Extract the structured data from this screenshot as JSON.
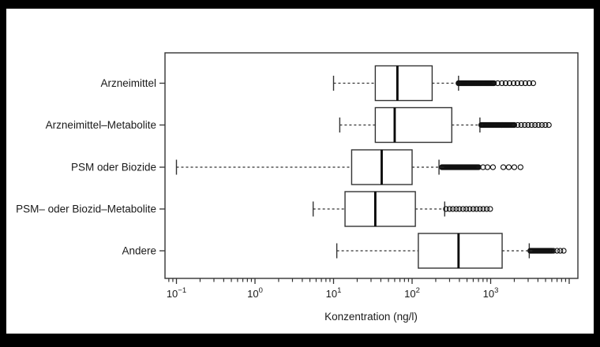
{
  "figure": {
    "background_color": "#000000",
    "panel_color": "#ffffff",
    "line_color": "#333333",
    "text_color": "#1a1a1a"
  },
  "chart_data": {
    "type": "boxplot",
    "orientation": "horizontal",
    "title": "",
    "xlabel": "Konzentration (ng/l)",
    "ylabel": "",
    "x_scale": "log10",
    "xlim": [
      0.0715,
      12900
    ],
    "grid": false,
    "legend": false,
    "x_major_ticks": [
      {
        "value": 0.1,
        "label_base": "10",
        "label_exp": "−1"
      },
      {
        "value": 1,
        "label_base": "10",
        "label_exp": "0"
      },
      {
        "value": 10,
        "label_base": "10",
        "label_exp": "1"
      },
      {
        "value": 100,
        "label_base": "10",
        "label_exp": "2"
      },
      {
        "value": 1000,
        "label_base": "10",
        "label_exp": "3"
      },
      {
        "value": 10000,
        "label_base": null,
        "label_exp": null
      }
    ],
    "x_minor_ticks": [
      0.08,
      0.09,
      0.2,
      0.3,
      0.4,
      0.5,
      0.6,
      0.7,
      0.8,
      0.9,
      2,
      3,
      4,
      5,
      6,
      7,
      8,
      9,
      20,
      30,
      40,
      50,
      60,
      70,
      80,
      90,
      200,
      300,
      400,
      500,
      600,
      700,
      800,
      900,
      2000,
      3000,
      4000,
      5000,
      6000,
      7000,
      8000,
      9000
    ],
    "series": [
      {
        "name": "Arzneimittel",
        "slug": "arzneimittel",
        "whisker_low": 10,
        "q1": 34,
        "median": 65,
        "q3": 180,
        "whisker_high": 390,
        "outliers": {
          "dense_range": [
            390,
            1100
          ],
          "dense_count": 48,
          "distinct": [
            1230,
            1390,
            1550,
            1740,
            1960,
            2190,
            2460,
            2760,
            3100,
            3480
          ]
        }
      },
      {
        "name": "Arzneimittel–Metabolite",
        "slug": "arzneimittel-metabolite",
        "whisker_low": 12,
        "q1": 34,
        "median": 60,
        "q3": 320,
        "whisker_high": 730,
        "outliers": {
          "dense_range": [
            760,
            2000
          ],
          "dense_count": 45,
          "distinct": [
            2210,
            2450,
            2710,
            3000,
            3320,
            3670,
            4060,
            4490,
            4970,
            5500
          ]
        }
      },
      {
        "name": "PSM oder Biozide",
        "slug": "psm-oder-biozide",
        "whisker_low": 0.1,
        "q1": 17,
        "median": 41,
        "q3": 100,
        "whisker_high": 220,
        "outliers": {
          "dense_range": [
            240,
            700
          ],
          "dense_count": 47,
          "distinct": [
            800,
            910,
            1070,
            1450,
            1700,
            2000,
            2400
          ]
        }
      },
      {
        "name": "PSM– oder Biozid–Metabolite",
        "slug": "psm-oder-biozid-metabolite",
        "whisker_low": 5.5,
        "q1": 14,
        "median": 34,
        "q3": 110,
        "whisker_high": 260,
        "outliers": {
          "dense_range": null,
          "dense_count": 0,
          "distinct": [
            270,
            300,
            330,
            365,
            400,
            445,
            490,
            540,
            600,
            660,
            730,
            805,
            890,
            985
          ]
        }
      },
      {
        "name": "Andere",
        "slug": "andere",
        "whisker_low": 11,
        "q1": 120,
        "median": 390,
        "q3": 1400,
        "whisker_high": 3100,
        "outliers": {
          "dense_range": [
            3200,
            6000
          ],
          "dense_count": 28,
          "distinct": [
            6300,
            7000,
            7700,
            8500
          ]
        }
      }
    ]
  }
}
